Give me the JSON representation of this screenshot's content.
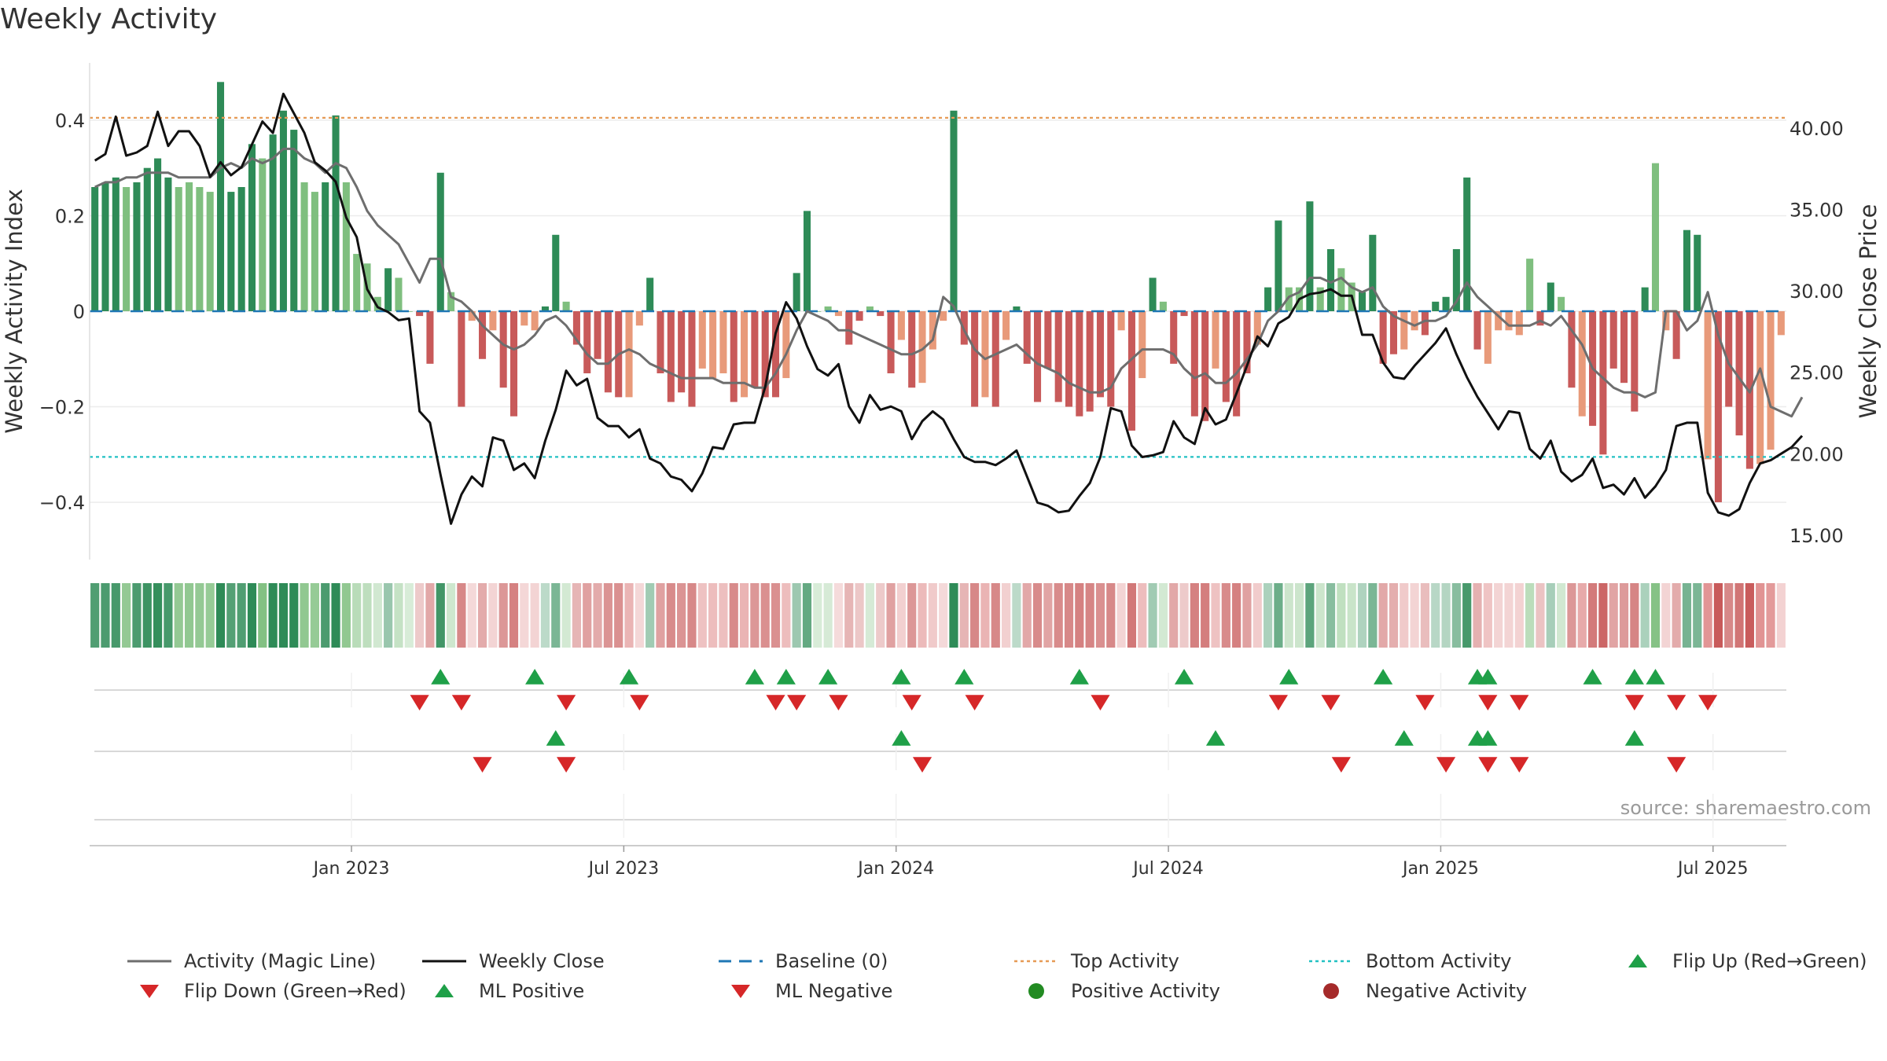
{
  "chart_data": {
    "type": "bar",
    "title": "Weekly Activity",
    "ylabel": "Weekly Activity Index",
    "y2label": "Weekly Close Price",
    "ylim": [
      -0.52,
      0.52
    ],
    "y2lim": [
      13.5,
      44.0
    ],
    "yticks": [
      0.4,
      0.2,
      0,
      -0.2,
      -0.4
    ],
    "ytick_labels": [
      "0.4",
      "0.2",
      "0",
      "−0.2",
      "−0.4"
    ],
    "y2ticks": [
      40,
      35,
      30,
      25,
      20,
      15
    ],
    "y2tick_labels": [
      "40.00",
      "35.00",
      "30.00",
      "25.00",
      "20.00",
      "15.00"
    ],
    "xticks": [
      25,
      51,
      77,
      103,
      129,
      155
    ],
    "xtick_labels": [
      "Jan 2023",
      "Jul 2023",
      "Jan 2024",
      "Jul 2024",
      "Jan 2025",
      "Jul 2025"
    ],
    "top_activity": 0.405,
    "bottom_activity": -0.305,
    "colors": {
      "strong_positive": "#2e8b57",
      "mild_positive": "#7fbf7f",
      "strong_negative": "#c85a5a",
      "mild_negative": "#e89a7a",
      "magic_line": "#6e6e6e",
      "close_line": "#111111",
      "baseline": "#1f77b4",
      "top_line": "#e69a55",
      "bottom_line": "#22c1c3",
      "marker_up": "#1fa048",
      "marker_down": "#d62728",
      "positive_dot": "#228b22",
      "negative_dot": "#a52a2a"
    },
    "activity": [
      0.26,
      0.27,
      0.28,
      0.26,
      0.27,
      0.3,
      0.32,
      0.28,
      0.26,
      0.27,
      0.26,
      0.25,
      0.48,
      0.25,
      0.26,
      0.35,
      0.32,
      0.37,
      0.42,
      0.38,
      0.27,
      0.25,
      0.27,
      0.41,
      0.27,
      0.12,
      0.1,
      0.03,
      0.09,
      0.07,
      0,
      -0.01,
      -0.11,
      0.29,
      0.04,
      -0.2,
      -0.02,
      -0.1,
      -0.04,
      -0.16,
      -0.22,
      -0.03,
      -0.04,
      0.01,
      0.16,
      0.02,
      -0.07,
      -0.13,
      -0.1,
      -0.17,
      -0.18,
      -0.18,
      -0.03,
      0.07,
      -0.13,
      -0.19,
      -0.17,
      -0.2,
      -0.12,
      -0.14,
      -0.13,
      -0.19,
      -0.18,
      -0.16,
      -0.18,
      -0.18,
      -0.14,
      0.08,
      0.21,
      0,
      0.01,
      -0.01,
      -0.07,
      -0.02,
      0.01,
      -0.01,
      -0.13,
      -0.06,
      -0.16,
      -0.15,
      -0.08,
      -0.02,
      0.42,
      -0.07,
      -0.2,
      -0.18,
      -0.2,
      -0.06,
      0.01,
      -0.11,
      -0.19,
      -0.12,
      -0.19,
      -0.2,
      -0.22,
      -0.21,
      -0.18,
      -0.2,
      -0.04,
      -0.25,
      -0.14,
      0.07,
      0.02,
      -0.11,
      -0.01,
      -0.22,
      -0.23,
      -0.12,
      -0.19,
      -0.22,
      -0.13,
      -0.07,
      0.05,
      0.19,
      0.05,
      0.05,
      0.23,
      0.05,
      0.13,
      0.09,
      0.06,
      0.04,
      0.16,
      -0.11,
      -0.09,
      -0.08,
      -0.04,
      -0.05,
      0.02,
      0.03,
      0.13,
      0.28,
      -0.08,
      -0.11,
      -0.04,
      -0.04,
      -0.05,
      0.11,
      -0.03,
      0.06,
      0.03,
      -0.16,
      -0.22,
      -0.24,
      -0.3,
      -0.12,
      -0.15,
      -0.21,
      0.05,
      0.31,
      -0.04,
      -0.1,
      0.17,
      0.16,
      -0.31,
      -0.4,
      -0.2,
      -0.26,
      -0.33,
      -0.32,
      -0.29,
      -0.05
    ],
    "strength": [
      2,
      2,
      2,
      1,
      2,
      2,
      2,
      2,
      1,
      1,
      1,
      1,
      2,
      2,
      2,
      2,
      1,
      2,
      2,
      2,
      1,
      1,
      2,
      2,
      1,
      1,
      1,
      1,
      2,
      1,
      1,
      2,
      2,
      2,
      1,
      2,
      1,
      2,
      1,
      2,
      2,
      1,
      1,
      2,
      2,
      1,
      2,
      2,
      2,
      2,
      2,
      1,
      1,
      2,
      2,
      2,
      2,
      2,
      1,
      1,
      1,
      2,
      1,
      2,
      2,
      2,
      1,
      2,
      2,
      1,
      1,
      1,
      2,
      2,
      1,
      2,
      2,
      1,
      2,
      1,
      1,
      1,
      2,
      2,
      2,
      1,
      2,
      1,
      2,
      2,
      2,
      2,
      2,
      2,
      2,
      2,
      2,
      2,
      1,
      2,
      1,
      2,
      1,
      2,
      2,
      2,
      2,
      1,
      2,
      2,
      2,
      1,
      2,
      2,
      1,
      1,
      2,
      1,
      2,
      1,
      1,
      2,
      2,
      2,
      2,
      1,
      1,
      2,
      2,
      2,
      2,
      2,
      2,
      1,
      1,
      1,
      1,
      1,
      2,
      2,
      1,
      2,
      1,
      2,
      2,
      2,
      2,
      2,
      2,
      1,
      1,
      2,
      2,
      2,
      1,
      2,
      2,
      2,
      2,
      1,
      1,
      1
    ],
    "magic_line": [
      0.26,
      0.27,
      0.27,
      0.28,
      0.28,
      0.29,
      0.29,
      0.29,
      0.28,
      0.28,
      0.28,
      0.28,
      0.3,
      0.31,
      0.3,
      0.32,
      0.31,
      0.32,
      0.34,
      0.34,
      0.32,
      0.31,
      0.29,
      0.31,
      0.3,
      0.26,
      0.21,
      0.18,
      0.16,
      0.14,
      0.1,
      0.06,
      0.11,
      0.11,
      0.03,
      0.02,
      0,
      -0.03,
      -0.05,
      -0.07,
      -0.08,
      -0.07,
      -0.05,
      -0.02,
      -0.01,
      -0.03,
      -0.06,
      -0.09,
      -0.11,
      -0.11,
      -0.09,
      -0.08,
      -0.09,
      -0.11,
      -0.12,
      -0.13,
      -0.14,
      -0.14,
      -0.14,
      -0.14,
      -0.15,
      -0.15,
      -0.15,
      -0.16,
      -0.16,
      -0.13,
      -0.09,
      -0.04,
      0,
      -0.01,
      -0.02,
      -0.04,
      -0.04,
      -0.05,
      -0.06,
      -0.07,
      -0.08,
      -0.09,
      -0.09,
      -0.08,
      -0.06,
      0.03,
      0.01,
      -0.04,
      -0.08,
      -0.1,
      -0.09,
      -0.08,
      -0.07,
      -0.09,
      -0.11,
      -0.12,
      -0.13,
      -0.15,
      -0.16,
      -0.17,
      -0.17,
      -0.16,
      -0.12,
      -0.1,
      -0.08,
      -0.08,
      -0.08,
      -0.09,
      -0.12,
      -0.14,
      -0.13,
      -0.15,
      -0.15,
      -0.13,
      -0.1,
      -0.07,
      -0.02,
      0,
      0.03,
      0.04,
      0.07,
      0.07,
      0.06,
      0.07,
      0.05,
      0.04,
      0.05,
      0.01,
      -0.01,
      -0.02,
      -0.03,
      -0.02,
      -0.02,
      -0.01,
      0.02,
      0.06,
      0.03,
      0.01,
      -0.01,
      -0.03,
      -0.03,
      -0.03,
      -0.02,
      -0.03,
      -0.01,
      -0.04,
      -0.07,
      -0.12,
      -0.14,
      -0.16,
      -0.17,
      -0.17,
      -0.18,
      -0.17,
      0,
      0,
      -0.04,
      -0.02,
      0.04,
      -0.05,
      -0.11,
      -0.14,
      -0.17,
      -0.12,
      -0.2,
      -0.21,
      -0.22,
      -0.18
    ],
    "close": [
      38.0,
      38.4,
      40.7,
      38.3,
      38.5,
      38.9,
      41.0,
      38.9,
      39.8,
      39.8,
      38.9,
      37.0,
      37.9,
      37.1,
      37.6,
      39.0,
      40.4,
      39.7,
      42.1,
      40.9,
      39.7,
      37.9,
      37.4,
      36.7,
      34.5,
      33.3,
      30.1,
      29.0,
      28.7,
      28.2,
      28.3,
      22.6,
      21.9,
      18.7,
      15.7,
      17.5,
      18.6,
      18.0,
      21.0,
      20.8,
      19.0,
      19.4,
      18.5,
      20.8,
      22.7,
      25.1,
      24.2,
      24.6,
      22.2,
      21.7,
      21.7,
      21.0,
      21.5,
      19.7,
      19.4,
      18.6,
      18.4,
      17.7,
      18.8,
      20.4,
      20.3,
      21.8,
      21.9,
      21.9,
      24.1,
      27.4,
      29.3,
      28.3,
      26.6,
      25.2,
      24.8,
      25.5,
      22.9,
      21.9,
      23.6,
      22.7,
      22.9,
      22.6,
      20.9,
      22.0,
      22.6,
      22.1,
      20.9,
      19.8,
      19.5,
      19.5,
      19.3,
      19.7,
      20.2,
      18.6,
      17.0,
      16.8,
      16.4,
      16.5,
      17.4,
      18.2,
      19.8,
      22.8,
      22.6,
      20.5,
      19.8,
      19.9,
      20.1,
      22.0,
      21.0,
      20.6,
      22.8,
      21.8,
      22.1,
      23.7,
      25.4,
      27.2,
      26.6,
      28.0,
      28.4,
      29.5,
      29.8,
      29.9,
      30.1,
      29.7,
      29.7,
      27.3,
      27.3,
      25.6,
      24.7,
      24.6,
      25.4,
      26.1,
      26.8,
      27.7,
      26.1,
      24.7,
      23.5,
      22.5,
      21.5,
      22.6,
      22.5,
      20.3,
      19.7,
      20.8,
      18.9,
      18.3,
      18.7,
      19.7,
      17.9,
      18.1,
      17.5,
      18.5,
      17.3,
      18.0,
      19.0,
      21.7,
      21.9,
      21.9,
      17.6,
      16.4,
      16.2,
      16.6,
      18.2,
      19.4,
      19.6,
      20.0,
      20.4,
      21.1
    ],
    "flip_up": [
      33,
      42,
      51,
      63,
      66,
      70,
      77,
      83,
      94,
      104,
      114,
      123,
      132,
      133,
      143,
      147,
      149
    ],
    "flip_down": [
      31,
      35,
      45,
      52,
      65,
      67,
      71,
      78,
      84,
      96,
      113,
      118,
      127,
      133,
      136,
      147,
      151,
      154
    ],
    "ml_positive": [
      44,
      77,
      107,
      125,
      132,
      133,
      147
    ],
    "ml_negative": [
      37,
      45,
      79,
      119,
      129,
      133,
      136,
      151
    ],
    "positive_activity": [],
    "negative_activity": [],
    "legend": [
      {
        "label": "Activity (Magic Line)",
        "kind": "line",
        "color": "#6e6e6e"
      },
      {
        "label": "Weekly Close",
        "kind": "line",
        "color": "#111111"
      },
      {
        "label": "Baseline (0)",
        "kind": "dash",
        "color": "#1f77b4"
      },
      {
        "label": "Top Activity",
        "kind": "dot-line",
        "color": "#e69a55"
      },
      {
        "label": "Bottom Activity",
        "kind": "dot-line",
        "color": "#22c1c3"
      },
      {
        "label": "Flip Up (Red→Green)",
        "kind": "tri-up",
        "color": "#1fa048"
      },
      {
        "label": "Flip Down (Green→Red)",
        "kind": "tri-down",
        "color": "#d62728"
      },
      {
        "label": "ML Positive",
        "kind": "tri-up",
        "color": "#1fa048"
      },
      {
        "label": "ML Negative",
        "kind": "tri-down",
        "color": "#d62728"
      },
      {
        "label": "Positive Activity",
        "kind": "circle",
        "color": "#228b22"
      },
      {
        "label": "Negative Activity",
        "kind": "circle",
        "color": "#a52a2a"
      }
    ],
    "source": "source: sharemaestro.com"
  }
}
